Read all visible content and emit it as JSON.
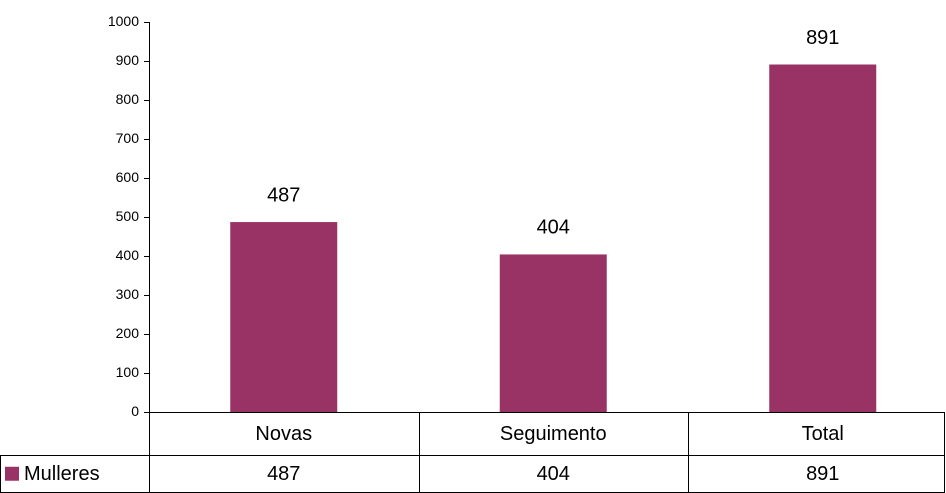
{
  "chart_data": {
    "type": "bar",
    "categories": [
      "Novas",
      "Seguimento",
      "Total"
    ],
    "series": [
      {
        "name": "Mulleres",
        "color": "#993366",
        "values": [
          487,
          404,
          891
        ]
      }
    ],
    "ylim": [
      0,
      1000
    ],
    "yticks": [
      0,
      100,
      200,
      300,
      400,
      500,
      600,
      700,
      800,
      900,
      1000
    ],
    "grid": false,
    "legend": "bottom-left",
    "data_table": true
  }
}
